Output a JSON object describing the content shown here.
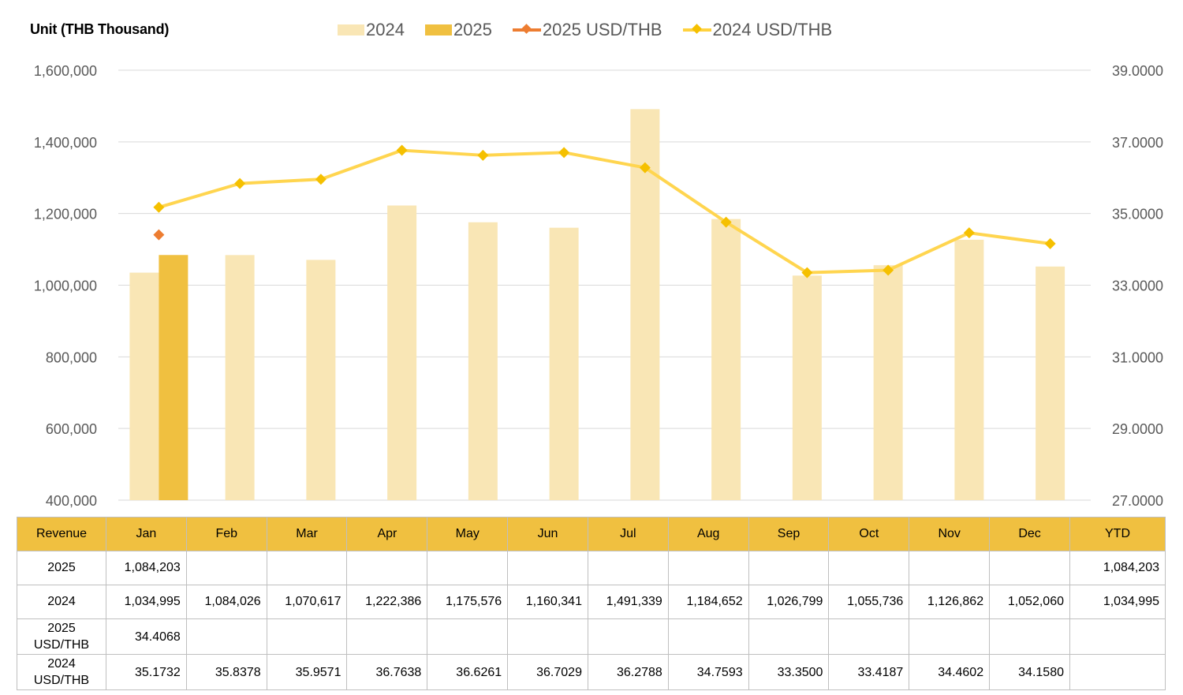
{
  "unit_label": "Unit (THB  Thousand)",
  "legend": [
    {
      "label": "2024",
      "kind": "bar",
      "color": "#f9e6b5"
    },
    {
      "label": "2025",
      "kind": "bar",
      "color": "#f0c040"
    },
    {
      "label": "2025 USD/THB",
      "kind": "line",
      "color": "#ed7d31"
    },
    {
      "label": "2024 USD/THB",
      "kind": "line",
      "color": "#ffd23f"
    }
  ],
  "chart_data": {
    "type": "bar",
    "categories": [
      "Jan",
      "Feb",
      "Mar",
      "Apr",
      "May",
      "Jun",
      "Jul",
      "Aug",
      "Sep",
      "Oct",
      "Nov",
      "Dec"
    ],
    "series": [
      {
        "name": "2024",
        "type": "bar",
        "axis": "left",
        "color": "#f9e6b5",
        "values": [
          1034995,
          1084026,
          1070617,
          1222386,
          1175576,
          1160341,
          1491339,
          1184652,
          1026799,
          1055736,
          1126862,
          1052060
        ]
      },
      {
        "name": "2025",
        "type": "bar",
        "axis": "left",
        "color": "#f0c040",
        "values": [
          1084203,
          null,
          null,
          null,
          null,
          null,
          null,
          null,
          null,
          null,
          null,
          null
        ]
      },
      {
        "name": "2025 USD/THB",
        "type": "line",
        "axis": "right",
        "color": "#ed7d31",
        "values": [
          34.4068,
          null,
          null,
          null,
          null,
          null,
          null,
          null,
          null,
          null,
          null,
          null
        ]
      },
      {
        "name": "2024 USD/THB",
        "type": "line",
        "axis": "right",
        "color": "#ffd23f",
        "values": [
          35.1732,
          35.8378,
          35.9571,
          36.7638,
          36.6261,
          36.7029,
          36.2788,
          34.7593,
          33.35,
          33.4187,
          34.4602,
          34.158
        ]
      }
    ],
    "y_left": {
      "min": 400000,
      "max": 1600000,
      "ticks": [
        "400,000",
        "600,000",
        "800,000",
        "1,000,000",
        "1,200,000",
        "1,400,000",
        "1,600,000"
      ]
    },
    "y_right": {
      "min": 27,
      "max": 39,
      "ticks": [
        "27.0000",
        "29.0000",
        "31.0000",
        "33.0000",
        "35.0000",
        "37.0000",
        "39.0000"
      ]
    },
    "grid": true,
    "legend_position": "top"
  },
  "table": {
    "header": [
      "Revenue",
      "Jan",
      "Feb",
      "Mar",
      "Apr",
      "May",
      "Jun",
      "Jul",
      "Aug",
      "Sep",
      "Oct",
      "Nov",
      "Dec",
      "YTD"
    ],
    "rows": [
      [
        "2025",
        "1,084,203",
        "",
        "",
        "",
        "",
        "",
        "",
        "",
        "",
        "",
        "",
        "",
        "1,084,203"
      ],
      [
        "2024",
        "1,034,995",
        "1,084,026",
        "1,070,617",
        "1,222,386",
        "1,175,576",
        "1,160,341",
        "1,491,339",
        "1,184,652",
        "1,026,799",
        "1,055,736",
        "1,126,862",
        "1,052,060",
        "1,034,995"
      ],
      [
        "2025\nUSD/THB",
        "34.4068",
        "",
        "",
        "",
        "",
        "",
        "",
        "",
        "",
        "",
        "",
        "",
        ""
      ],
      [
        "2024\nUSD/THB",
        "35.1732",
        "35.8378",
        "35.9571",
        "36.7638",
        "36.6261",
        "36.7029",
        "36.2788",
        "34.7593",
        "33.3500",
        "33.4187",
        "34.4602",
        "34.1580",
        ""
      ]
    ]
  }
}
